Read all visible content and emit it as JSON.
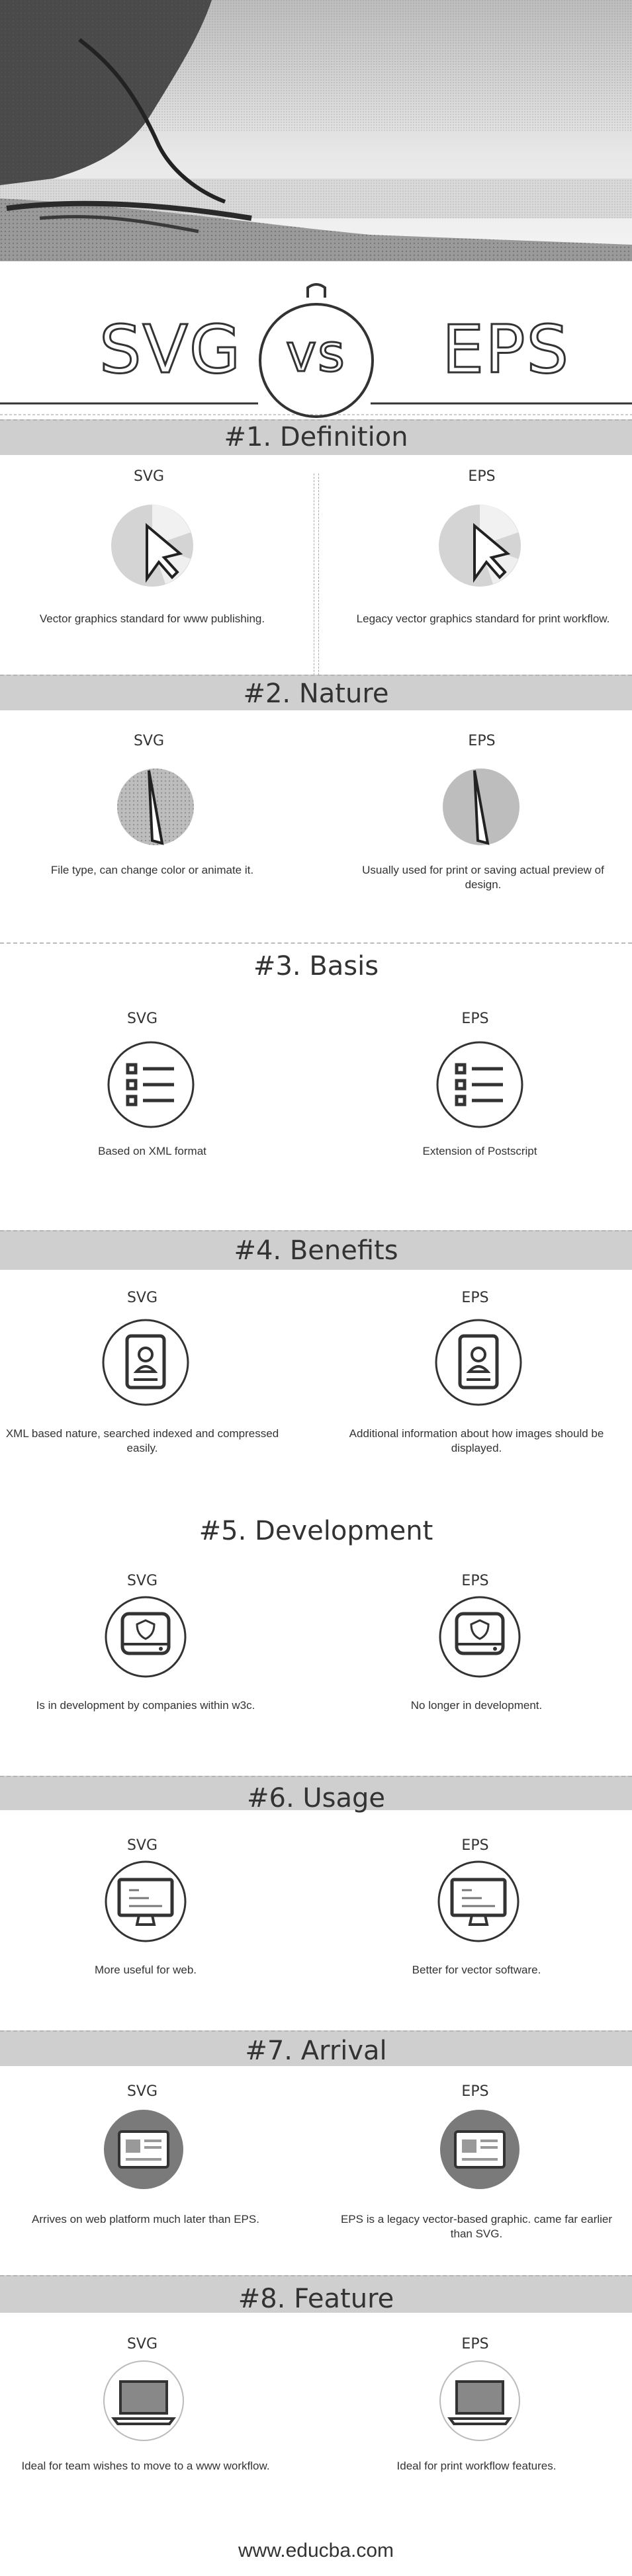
{
  "header": {
    "left": "SVG",
    "vs": "vs",
    "right": "EPS"
  },
  "sections": [
    {
      "heading": "#1. Definition",
      "left_label": "SVG",
      "right_label": "EPS",
      "left_text": "Vector graphics standard for www publishing.",
      "right_text": "Legacy vector graphics standard for print workflow.",
      "icon": "pie-cursor-icon"
    },
    {
      "heading": "#2. Nature",
      "left_label": "SVG",
      "right_label": "EPS",
      "left_text": "File type, can change color or animate it.",
      "right_text": "Usually used for print or saving actual preview of design.",
      "icon": "globe-pen-icon"
    },
    {
      "heading": "#3. Basis",
      "left_label": "SVG",
      "right_label": "EPS",
      "left_text": "Based on XML format",
      "right_text": "Extension of Postscript",
      "icon": "list-icon"
    },
    {
      "heading": "#4. Benefits",
      "left_label": "SVG",
      "right_label": "EPS",
      "left_text": "XML based nature, searched indexed and compressed easily.",
      "right_text": "Additional information about how images should be displayed.",
      "icon": "profile-document-icon"
    },
    {
      "heading": "#5. Development",
      "left_label": "SVG",
      "right_label": "EPS",
      "left_text": "Is in development by companies within w3c.",
      "right_text": "No longer in development.",
      "icon": "shield-drive-icon"
    },
    {
      "heading": "#6. Usage",
      "left_label": "SVG",
      "right_label": "EPS",
      "left_text": "More useful for web.",
      "right_text": "Better for vector software.",
      "icon": "monitor-icon"
    },
    {
      "heading": "#7. Arrival",
      "left_label": "SVG",
      "right_label": "EPS",
      "left_text": "Arrives on web platform much later than EPS.",
      "right_text": "EPS is a legacy vector-based graphic. came far earlier than SVG.",
      "icon": "web-page-icon"
    },
    {
      "heading": "#8. Feature",
      "left_label": "SVG",
      "right_label": "EPS",
      "left_text": "Ideal for team wishes to move to a www workflow.",
      "right_text": "Ideal for print workflow features.",
      "icon": "laptop-icon"
    }
  ],
  "footer": {
    "site": "www.educba.com"
  },
  "colors": {
    "band": "#cfcfcf",
    "text": "#2b2b2b",
    "line": "#333333"
  }
}
